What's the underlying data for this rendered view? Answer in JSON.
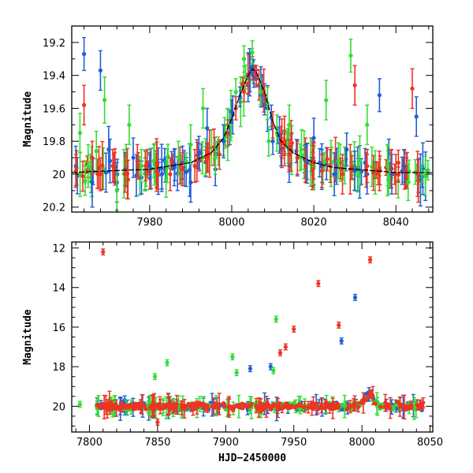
{
  "chart_data": [
    {
      "type": "scatter",
      "title": "",
      "xlabel": "",
      "ylabel": "Magnitude",
      "xlim": [
        7961,
        8049
      ],
      "ylim": [
        19.1,
        20.23
      ],
      "y_inverted": true,
      "x_ticks": [
        7980,
        8000,
        8020,
        8040
      ],
      "y_ticks": [
        19.2,
        19.4,
        19.6,
        19.8,
        20,
        20.2
      ],
      "error_bars": true,
      "model_curve": {
        "color": "#000000",
        "x": [
          7961,
          7970,
          7980,
          7990,
          7995,
          7998,
          8000,
          8002,
          8004,
          8005,
          8006,
          8008,
          8010,
          8012,
          8015,
          8020,
          8025,
          8030,
          8035,
          8040,
          8049
        ],
        "y": [
          19.99,
          19.98,
          19.97,
          19.93,
          19.87,
          19.78,
          19.66,
          19.52,
          19.4,
          19.36,
          19.38,
          19.5,
          19.68,
          19.8,
          19.87,
          19.93,
          19.96,
          19.97,
          19.98,
          19.99,
          19.99
        ]
      },
      "series": [
        {
          "color": "#1f5fd6",
          "x": [
            7962,
            7964,
            7966,
            7968,
            7970,
            7972,
            7974,
            7976,
            7978,
            7980,
            7983,
            7986,
            7988,
            7990,
            7992,
            7994,
            7996,
            7998,
            8000,
            8002,
            8004,
            8005,
            8006,
            8007,
            8008,
            8010,
            8012,
            8014,
            8016,
            8018,
            8020,
            8022,
            8025,
            8028,
            8030,
            8033,
            8036,
            8039,
            8042,
            8045
          ],
          "y": [
            19.95,
            19.27,
            20.05,
            19.37,
            19.85,
            20.05,
            19.97,
            19.9,
            20.02,
            19.95,
            20.0,
            19.96,
            19.93,
            20.05,
            19.87,
            19.72,
            19.97,
            19.8,
            19.62,
            19.53,
            19.46,
            19.35,
            19.42,
            19.52,
            19.58,
            19.8,
            19.85,
            19.95,
            19.9,
            19.92,
            19.78,
            19.95,
            20.0,
            19.85,
            19.98,
            20.0,
            19.52,
            20.0,
            19.95,
            19.65
          ],
          "err": [
            0.12,
            0.1,
            0.15,
            0.12,
            0.14,
            0.12,
            0.1,
            0.12,
            0.1,
            0.08,
            0.09,
            0.11,
            0.1,
            0.12,
            0.1,
            0.12,
            0.1,
            0.1,
            0.07,
            0.06,
            0.05,
            0.05,
            0.05,
            0.06,
            0.06,
            0.08,
            0.1,
            0.1,
            0.11,
            0.1,
            0.12,
            0.1,
            0.13,
            0.1,
            0.12,
            0.12,
            0.1,
            0.12,
            0.1,
            0.12
          ]
        },
        {
          "color": "#33dd33",
          "x": [
            7963,
            7965,
            7967,
            7969,
            7972,
            7975,
            7978,
            7981,
            7984,
            7987,
            7990,
            7993,
            7996,
            7999,
            8001,
            8003,
            8005,
            8007,
            8009,
            8011,
            8014,
            8017,
            8020,
            8023,
            8026,
            8029,
            8033,
            8038,
            8043
          ],
          "y": [
            19.75,
            19.95,
            19.86,
            19.55,
            20.1,
            19.7,
            19.95,
            19.92,
            20.03,
            19.9,
            19.82,
            19.6,
            19.9,
            19.7,
            19.5,
            19.3,
            19.26,
            19.5,
            19.8,
            19.75,
            19.7,
            19.85,
            19.95,
            19.55,
            19.92,
            19.28,
            19.7,
            19.95,
            20.05
          ],
          "err": [
            0.12,
            0.13,
            0.12,
            0.14,
            0.12,
            0.12,
            0.1,
            0.1,
            0.11,
            0.1,
            0.12,
            0.12,
            0.1,
            0.1,
            0.08,
            0.08,
            0.07,
            0.08,
            0.09,
            0.11,
            0.12,
            0.12,
            0.11,
            0.12,
            0.11,
            0.1,
            0.12,
            0.12,
            0.11
          ]
        },
        {
          "color": "#ee3322",
          "x": [
            7962,
            7964,
            7966,
            7968,
            7971,
            7974,
            7977,
            7979,
            7982,
            7985,
            7988,
            7991,
            7994,
            7997,
            7999,
            8001,
            8003,
            8004,
            8006,
            8008,
            8010,
            8012,
            8014,
            8016,
            8018,
            8020,
            8022,
            8024,
            8027,
            8030,
            8033,
            8036,
            8040,
            8044
          ],
          "y": [
            19.98,
            19.58,
            19.9,
            20.0,
            19.95,
            20.0,
            19.92,
            19.95,
            20.0,
            20.0,
            19.97,
            19.95,
            19.9,
            19.88,
            19.75,
            19.6,
            19.5,
            19.45,
            19.4,
            19.52,
            19.7,
            19.8,
            19.88,
            19.9,
            19.95,
            19.92,
            19.98,
            19.95,
            20.0,
            19.46,
            19.95,
            19.98,
            20.0,
            19.48
          ],
          "err": [
            0.1,
            0.12,
            0.1,
            0.1,
            0.1,
            0.11,
            0.1,
            0.09,
            0.09,
            0.1,
            0.1,
            0.1,
            0.09,
            0.09,
            0.08,
            0.07,
            0.06,
            0.06,
            0.06,
            0.07,
            0.08,
            0.09,
            0.09,
            0.1,
            0.1,
            0.11,
            0.1,
            0.1,
            0.12,
            0.12,
            0.1,
            0.12,
            0.12,
            0.12
          ]
        }
      ]
    },
    {
      "type": "scatter",
      "title": "",
      "xlabel": "HJD−2450000",
      "ylabel": "Magnitude",
      "xlim": [
        7787,
        8052
      ],
      "ylim": [
        11.7,
        21.3
      ],
      "y_inverted": true,
      "x_ticks": [
        7800,
        7850,
        7900,
        7950,
        8000,
        8050
      ],
      "y_ticks": [
        12,
        14,
        16,
        18,
        20
      ],
      "error_bars": true,
      "baseline_magnitude": 20.0,
      "series": [
        {
          "color": "#1f5fd6",
          "outliers_x": [
            7918,
            7933,
            7985,
            7995
          ],
          "outliers_y": [
            18.1,
            18.0,
            16.7,
            14.5
          ]
        },
        {
          "color": "#33dd33",
          "outliers_x": [
            7793,
            7848,
            7857,
            7905,
            7908,
            7935,
            7937
          ],
          "outliers_y": [
            19.9,
            18.5,
            17.8,
            17.5,
            18.3,
            18.2,
            15.6
          ]
        },
        {
          "color": "#ee3322",
          "outliers_x": [
            7810,
            7850,
            7940,
            7944,
            7950,
            7968,
            7983,
            8006
          ],
          "outliers_y": [
            12.2,
            20.8,
            17.3,
            17.0,
            16.1,
            13.8,
            15.9,
            12.6
          ]
        }
      ]
    }
  ]
}
